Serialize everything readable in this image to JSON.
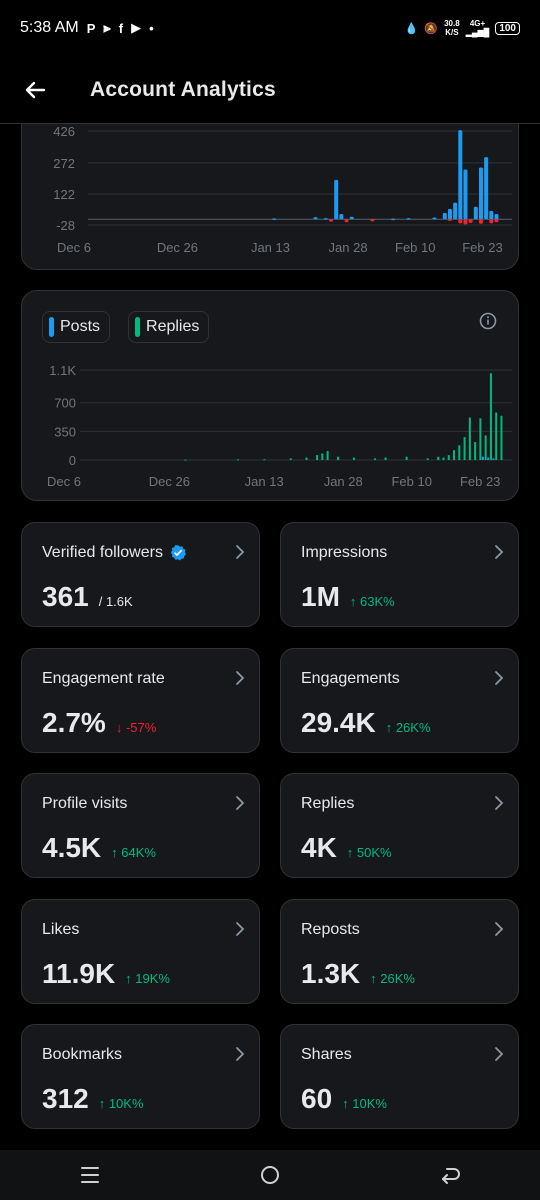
{
  "status_bar": {
    "time": "5:38 AM",
    "notification_icons": [
      "P",
      "⫸",
      "f",
      "▶",
      "•"
    ],
    "net_speed_value": "30.8",
    "net_speed_unit": "K/S",
    "signal_label": "4G+",
    "battery": "100"
  },
  "header": {
    "title": "Account Analytics"
  },
  "chart1": {
    "type": "bar",
    "y_ticks": [
      "426",
      "272",
      "122",
      "-28"
    ],
    "x_ticks": [
      "Dec 6",
      "Dec 26",
      "Jan 13",
      "Jan 28",
      "Feb 10",
      "Feb 23"
    ],
    "positive_color": "#1d9bf0",
    "negative_color": "#f4212e"
  },
  "chart2": {
    "legend": [
      {
        "label": "Posts",
        "color": "#1d9bf0"
      },
      {
        "label": "Replies",
        "color": "#00ba7c"
      }
    ],
    "y_ticks": [
      "1.1K",
      "700",
      "350",
      "0"
    ],
    "x_ticks": [
      "Dec 6",
      "Dec 26",
      "Jan 13",
      "Jan 28",
      "Feb 10",
      "Feb 23"
    ]
  },
  "chart_data": [
    {
      "type": "bar",
      "title": "",
      "xlabel": "",
      "ylabel": "",
      "ylim": [
        -28,
        426
      ],
      "x_tick_labels": [
        "Dec 6",
        "Dec 26",
        "Jan 13",
        "Jan 28",
        "Feb 10",
        "Feb 23"
      ],
      "y_tick_labels": [
        "426",
        "272",
        "122",
        "-28"
      ],
      "grid": true,
      "series": [
        {
          "values": [
            [
              36,
              4
            ],
            [
              44,
              10
            ],
            [
              46,
              5
            ],
            [
              48,
              190
            ],
            [
              49,
              25
            ],
            [
              51,
              12
            ],
            [
              59,
              3
            ],
            [
              62,
              5
            ],
            [
              67,
              8
            ],
            [
              69,
              30
            ],
            [
              70,
              50
            ],
            [
              71,
              80
            ],
            [
              72,
              430
            ],
            [
              73,
              240
            ],
            [
              75,
              60
            ],
            [
              76,
              250
            ],
            [
              77,
              300
            ],
            [
              78,
              40
            ],
            [
              79,
              25
            ]
          ]
        },
        {
          "values": [
            [
              47,
              -12
            ],
            [
              50,
              -15
            ],
            [
              55,
              -10
            ],
            [
              70,
              -8
            ],
            [
              72,
              -20
            ],
            [
              73,
              -25
            ],
            [
              74,
              -18
            ],
            [
              76,
              -22
            ],
            [
              78,
              -20
            ],
            [
              79,
              -15
            ]
          ]
        }
      ]
    },
    {
      "type": "bar",
      "title": "",
      "xlabel": "",
      "ylabel": "",
      "ylim": [
        0,
        1100
      ],
      "x_tick_labels": [
        "Dec 6",
        "Dec 26",
        "Jan 13",
        "Jan 28",
        "Feb 10",
        "Feb 23"
      ],
      "y_tick_labels": [
        "1.1K",
        "700",
        "350",
        "0"
      ],
      "grid": true,
      "series": [
        {
          "name": "Posts",
          "values": [
            [
              76,
              40
            ],
            [
              77,
              30
            ],
            [
              78,
              20
            ]
          ]
        },
        {
          "name": "Replies",
          "values": [
            [
              20,
              5
            ],
            [
              30,
              8
            ],
            [
              35,
              10
            ],
            [
              40,
              20
            ],
            [
              43,
              30
            ],
            [
              45,
              60
            ],
            [
              46,
              80
            ],
            [
              47,
              110
            ],
            [
              49,
              40
            ],
            [
              52,
              30
            ],
            [
              56,
              20
            ],
            [
              58,
              30
            ],
            [
              62,
              40
            ],
            [
              66,
              20
            ],
            [
              68,
              40
            ],
            [
              69,
              30
            ],
            [
              70,
              60
            ],
            [
              71,
              120
            ],
            [
              72,
              180
            ],
            [
              73,
              280
            ],
            [
              74,
              520
            ],
            [
              75,
              220
            ],
            [
              76,
              510
            ],
            [
              77,
              300
            ],
            [
              78,
              1060
            ],
            [
              79,
              580
            ],
            [
              80,
              540
            ]
          ]
        }
      ]
    }
  ],
  "stats": [
    {
      "label": "Verified followers",
      "value": "361",
      "sub": "/ 1.6K",
      "delta": "",
      "verified": true
    },
    {
      "label": "Impressions",
      "value": "1M",
      "sub": "",
      "delta": "↑ 63K%",
      "direction": "up"
    },
    {
      "label": "Engagement rate",
      "value": "2.7%",
      "sub": "",
      "delta": "↓ -57%",
      "direction": "down"
    },
    {
      "label": "Engagements",
      "value": "29.4K",
      "sub": "",
      "delta": "↑ 26K%",
      "direction": "up"
    },
    {
      "label": "Profile visits",
      "value": "4.5K",
      "sub": "",
      "delta": "↑ 64K%",
      "direction": "up"
    },
    {
      "label": "Replies",
      "value": "4K",
      "sub": "",
      "delta": "↑ 50K%",
      "direction": "up"
    },
    {
      "label": "Likes",
      "value": "11.9K",
      "sub": "",
      "delta": "↑ 19K%",
      "direction": "up"
    },
    {
      "label": "Reposts",
      "value": "1.3K",
      "sub": "",
      "delta": "↑ 26K%",
      "direction": "up"
    },
    {
      "label": "Bookmarks",
      "value": "312",
      "sub": "",
      "delta": "↑ 10K%",
      "direction": "up"
    },
    {
      "label": "Shares",
      "value": "60",
      "sub": "",
      "delta": "↑ 10K%",
      "direction": "up"
    }
  ],
  "nav": {
    "icons": [
      "recents-icon",
      "home-icon",
      "back-icon"
    ]
  },
  "colors": {
    "accent_blue": "#1d9bf0",
    "green": "#00ba7c",
    "red": "#f4212e",
    "card_bg": "#16181c",
    "border": "#2f3336"
  }
}
